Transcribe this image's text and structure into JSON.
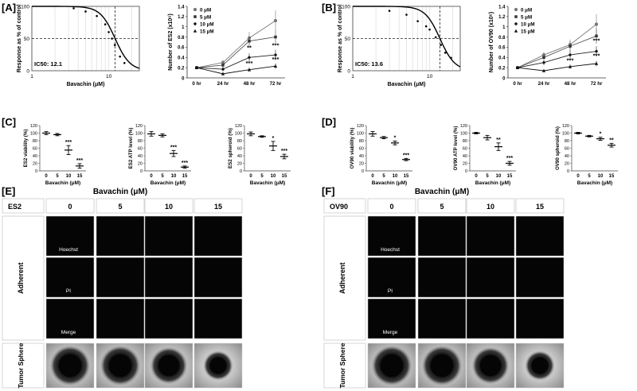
{
  "panels": {
    "A": "[A]",
    "B": "[B]",
    "C": "[C]",
    "D": "[D]",
    "E": "[E]",
    "F": "[F]"
  },
  "compound_header": "Bavachin (μM)",
  "conc_labels": [
    "0",
    "5",
    "10",
    "15"
  ],
  "timepoints": [
    "0 hr",
    "24 hr",
    "48 hr",
    "72 hr"
  ],
  "legend_labels": [
    "0 μM",
    "5 μM",
    "10 μM",
    "15 μM"
  ],
  "dose_axis_label": "Bavachin (μM)",
  "response_axis_label": "Response as % of control",
  "micro_E": {
    "cell_line": "ES2",
    "row_labels": [
      "Hoechst",
      "PI",
      "Merge"
    ],
    "group_labels": [
      "Adherent",
      "Tumor Sphere"
    ]
  },
  "micro_F": {
    "cell_line": "OV90",
    "row_labels": [
      "Hoechst",
      "PI",
      "Merge"
    ],
    "group_labels": [
      "Adherent",
      "Tumor Sphere"
    ]
  },
  "chart_data": [
    {
      "id": "A-dose-response",
      "type": "scatter",
      "xlabel": "Bavachin (μM)",
      "ylabel": "Response as % of control",
      "x_scale": "log",
      "xlim": [
        1,
        25
      ],
      "ylim": [
        0,
        100
      ],
      "x_ticks": [
        "1",
        "10"
      ],
      "y_ticks": [
        "0",
        "50",
        "100"
      ],
      "reference_line_y": 50,
      "reference_line_x": 12.1,
      "annotation": "IC50: 12.1",
      "points": [
        [
          3.5,
          97
        ],
        [
          5,
          92
        ],
        [
          7,
          85
        ],
        [
          9,
          72
        ],
        [
          10,
          60
        ],
        [
          11,
          50
        ],
        [
          12,
          40
        ],
        [
          14,
          22
        ],
        [
          16,
          12
        ]
      ]
    },
    {
      "id": "A-growth",
      "type": "line",
      "ylabel": "Number of ES2 (x10⁶)",
      "ylim": [
        0,
        1.4
      ],
      "y_ticks": [
        "0",
        "0.2",
        "0.4",
        "0.6",
        "0.8",
        "1",
        "1.2",
        "1.4"
      ],
      "categories": [
        "0 hr",
        "24 hr",
        "48 hr",
        "72 hr"
      ],
      "series": [
        {
          "name": "0 μM",
          "marker": "circle",
          "values": [
            0.2,
            0.3,
            0.78,
            1.12
          ],
          "errors": [
            0.02,
            0.06,
            0.12,
            0.2
          ]
        },
        {
          "name": "5 μM",
          "marker": "square",
          "values": [
            0.2,
            0.25,
            0.72,
            0.8
          ],
          "errors": [
            0.02,
            0.05,
            0.1,
            0.12
          ]
        },
        {
          "name": "10 μM",
          "marker": "diamond",
          "values": [
            0.2,
            0.17,
            0.4,
            0.45
          ],
          "errors": [
            0.02,
            0.04,
            0.08,
            0.1
          ]
        },
        {
          "name": "15 μM",
          "marker": "triangle",
          "values": [
            0.2,
            0.08,
            0.16,
            0.23
          ],
          "errors": [
            0.02,
            0.03,
            0.04,
            0.05
          ]
        }
      ],
      "annotations": [
        {
          "category": "48 hr",
          "y": 0.55,
          "text": "**"
        },
        {
          "category": "48 hr",
          "y": 0.25,
          "text": "***"
        },
        {
          "category": "72 hr",
          "y": 0.6,
          "text": "***"
        },
        {
          "category": "72 hr",
          "y": 0.33,
          "text": "***"
        }
      ]
    },
    {
      "id": "B-dose-response",
      "type": "scatter",
      "xlabel": "Bavachin (μM)",
      "ylabel": "Response as % of control",
      "x_scale": "log",
      "xlim": [
        1,
        25
      ],
      "ylim": [
        0,
        100
      ],
      "x_ticks": [
        "1",
        "10"
      ],
      "y_ticks": [
        "0",
        "50",
        "100"
      ],
      "reference_line_y": 50,
      "reference_line_x": 13.6,
      "annotation": "IC50: 13.6",
      "points": [
        [
          3,
          93
        ],
        [
          5,
          87
        ],
        [
          7,
          77
        ],
        [
          9,
          69
        ],
        [
          10,
          64
        ],
        [
          12,
          52
        ],
        [
          14,
          40
        ],
        [
          16,
          28
        ],
        [
          19,
          20
        ]
      ]
    },
    {
      "id": "B-growth",
      "type": "line",
      "ylabel": "Number of OV90 (x10⁶)",
      "ylim": [
        0,
        1.4
      ],
      "y_ticks": [
        "0",
        "0.2",
        "0.4",
        "0.6",
        "0.8",
        "1",
        "1.2",
        "1.4"
      ],
      "categories": [
        "0 hr",
        "24 hr",
        "48 hr",
        "72 hr"
      ],
      "series": [
        {
          "name": "0 μM",
          "marker": "circle",
          "values": [
            0.2,
            0.45,
            0.65,
            1.05
          ],
          "errors": [
            0.02,
            0.06,
            0.1,
            0.2
          ]
        },
        {
          "name": "5 μM",
          "marker": "square",
          "values": [
            0.2,
            0.4,
            0.62,
            0.82
          ],
          "errors": [
            0.02,
            0.05,
            0.1,
            0.15
          ]
        },
        {
          "name": "10 μM",
          "marker": "diamond",
          "values": [
            0.2,
            0.3,
            0.45,
            0.52
          ],
          "errors": [
            0.02,
            0.05,
            0.08,
            0.1
          ]
        },
        {
          "name": "15 μM",
          "marker": "triangle",
          "values": [
            0.2,
            0.14,
            0.22,
            0.28
          ],
          "errors": [
            0.02,
            0.03,
            0.04,
            0.05
          ]
        }
      ],
      "annotations": [
        {
          "category": "72 hr",
          "y": 0.69,
          "text": "***"
        },
        {
          "category": "72 hr",
          "y": 0.4,
          "text": "***"
        },
        {
          "category": "48 hr",
          "y": 0.3,
          "text": "***"
        }
      ]
    },
    {
      "id": "C-viability",
      "type": "scatter",
      "ylabel": "ES2 viability (%)",
      "xlabel": "Bavachin (μM)",
      "ylim": [
        0,
        120
      ],
      "y_ticks": [
        "0",
        "20",
        "40",
        "60",
        "80",
        "100",
        "120"
      ],
      "categories": [
        "0",
        "5",
        "10",
        "15"
      ],
      "values": [
        100,
        96,
        55,
        13
      ],
      "errors": [
        4,
        3,
        12,
        6
      ],
      "significance": [
        "",
        "",
        "***",
        "***"
      ]
    },
    {
      "id": "C-atp",
      "type": "scatter",
      "ylabel": "ES2 ATP level (%)",
      "xlabel": "Bavachin (μM)",
      "ylim": [
        0,
        120
      ],
      "y_ticks": [
        "0",
        "20",
        "40",
        "60",
        "80",
        "100",
        "120"
      ],
      "categories": [
        "0",
        "5",
        "10",
        "15"
      ],
      "values": [
        98,
        94,
        46,
        10
      ],
      "errors": [
        6,
        4,
        8,
        3
      ],
      "significance": [
        "",
        "",
        "***",
        "***"
      ]
    },
    {
      "id": "C-spheroid",
      "type": "scatter",
      "ylabel": "ES2 spheroid (%)",
      "xlabel": "Bavachin (μM)",
      "ylim": [
        0,
        120
      ],
      "y_ticks": [
        "0",
        "20",
        "40",
        "60",
        "80",
        "100",
        "120"
      ],
      "categories": [
        "0",
        "5",
        "10",
        "15"
      ],
      "values": [
        98,
        91,
        66,
        38
      ],
      "errors": [
        5,
        2,
        12,
        6
      ],
      "significance": [
        "",
        "",
        "*",
        "***"
      ]
    },
    {
      "id": "D-viability",
      "type": "scatter",
      "ylabel": "OV90 viability (%)",
      "xlabel": "Bavachin (μM)",
      "ylim": [
        0,
        120
      ],
      "y_ticks": [
        "0",
        "20",
        "40",
        "60",
        "80",
        "100",
        "120"
      ],
      "categories": [
        "0",
        "5",
        "10",
        "15"
      ],
      "values": [
        98,
        88,
        74,
        30
      ],
      "errors": [
        6,
        3,
        5,
        3
      ],
      "significance": [
        "",
        "",
        "*",
        "***"
      ]
    },
    {
      "id": "D-atp",
      "type": "scatter",
      "ylabel": "OV90 ATP level (%)",
      "xlabel": "Bavachin (μM)",
      "ylim": [
        0,
        120
      ],
      "y_ticks": [
        "0",
        "20",
        "40",
        "60",
        "80",
        "100",
        "120"
      ],
      "categories": [
        "0",
        "5",
        "10",
        "15"
      ],
      "values": [
        100,
        88,
        64,
        20
      ],
      "errors": [
        2,
        6,
        10,
        5
      ],
      "significance": [
        "",
        "",
        "**",
        "***"
      ]
    },
    {
      "id": "D-spheroid",
      "type": "scatter",
      "ylabel": "OV90 spheroid (%)",
      "xlabel": "Bavachin (μM)",
      "ylim": [
        0,
        120
      ],
      "y_ticks": [
        "0",
        "20",
        "40",
        "60",
        "80",
        "100",
        "120"
      ],
      "categories": [
        "0",
        "5",
        "10",
        "15"
      ],
      "values": [
        100,
        92,
        85,
        68
      ],
      "errors": [
        2,
        2,
        4,
        5
      ],
      "significance": [
        "",
        "",
        "*",
        "**"
      ]
    }
  ]
}
